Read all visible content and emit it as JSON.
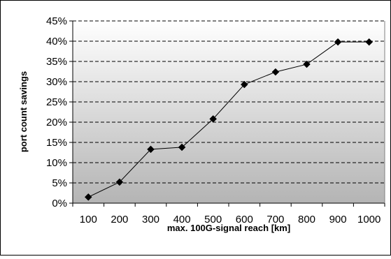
{
  "chart_data": {
    "type": "line",
    "title": "",
    "xlabel": "max. 100G-signal reach [km]",
    "ylabel": "port count savings",
    "x": [
      100,
      200,
      300,
      400,
      500,
      600,
      700,
      800,
      900,
      1000
    ],
    "x_tick_labels": [
      "100",
      "200",
      "300",
      "400",
      "500",
      "600",
      "700",
      "800",
      "900",
      "1000"
    ],
    "series": [
      {
        "values": [
          1.5,
          5.2,
          13.3,
          13.8,
          20.8,
          29.3,
          32.4,
          34.3,
          39.8,
          39.8
        ]
      }
    ],
    "ylim": [
      0,
      45
    ],
    "y_ticks": [
      0,
      5,
      10,
      15,
      20,
      25,
      30,
      35,
      40,
      45
    ],
    "y_tick_format": "percent",
    "grid": "horizontal-dashed",
    "legend": "none",
    "marker": "diamond",
    "colors": {
      "line": "#000000",
      "marker": "#000000",
      "grid": "#000000",
      "plot_bg_top": "#ffffff",
      "plot_bg_bottom": "#b4b4b4",
      "frame": "#000000"
    }
  }
}
